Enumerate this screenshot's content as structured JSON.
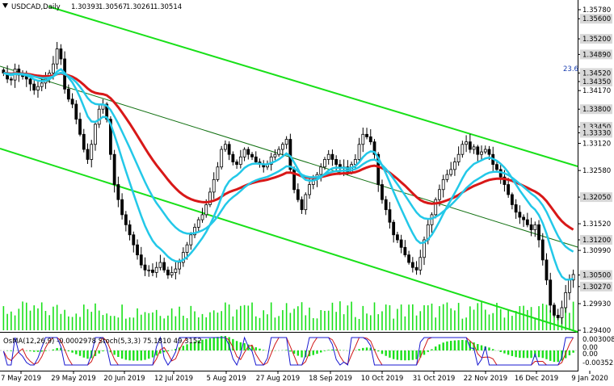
{
  "chart_data": {
    "type": "candlestick",
    "symbol": "USDCAD,Daily",
    "ohlc": {
      "open": "1.30393",
      "high": "1.30567",
      "low": "1.30261",
      "close": "1.30514"
    },
    "fib_label": "23.6",
    "price_ticks": [
      "1.35780",
      "1.35600",
      "1.35200",
      "1.34890",
      "1.34520",
      "1.34350",
      "1.34170",
      "1.33800",
      "1.33450",
      "1.33330",
      "1.33120",
      "1.32580",
      "1.32050",
      "1.31520",
      "1.31200",
      "1.30990",
      "1.30500",
      "1.30270",
      "1.29930",
      "1.29400"
    ],
    "price_tick_values": [
      1.3578,
      1.356,
      1.352,
      1.3489,
      1.3452,
      1.3435,
      1.3417,
      1.338,
      1.3345,
      1.3333,
      1.3312,
      1.3258,
      1.3205,
      1.3152,
      1.312,
      1.3099,
      1.305,
      1.3027,
      1.2993,
      1.294
    ],
    "highlighted_levels": [
      "1.35600",
      "1.35200",
      "1.34890",
      "1.34520",
      "1.34350",
      "1.33800",
      "1.33450",
      "1.33330",
      "1.32050",
      "1.31200",
      "1.30500",
      "1.30270"
    ],
    "date_ticks": [
      "7 May 2019",
      "29 May 2019",
      "20 Jun 2019",
      "12 Jul 2019",
      "5 Aug 2019",
      "27 Aug 2019",
      "18 Sep 2019",
      "10 Oct 2019",
      "31 Oct 2019",
      "22 Nov 2019",
      "16 Dec 2019",
      "9 Jan 2020"
    ],
    "indicator_label": "OsMA(12,26,9) -0.0002978 Stoch(5,3,3) 75.1810 49.3152",
    "indicator_ticks": [
      "0.0030085",
      "0.00",
      "0.00",
      "-0.0035255"
    ],
    "price_range": [
      1.294,
      1.3578
    ],
    "colors": {
      "candles": "#000000",
      "ema_fast": "#23c8e8",
      "ema_mid": "#23c8e8",
      "ema_slow": "#d81818",
      "channel": "#19e019",
      "channel_mid": "#106010",
      "volume": "#19e019",
      "osma": "#19e019",
      "stoch_main": "#1818d0",
      "stoch_signal": "#d01818"
    },
    "closes": [
      1.3452,
      1.344,
      1.3438,
      1.346,
      1.3448,
      1.3445,
      1.344,
      1.343,
      1.3418,
      1.3425,
      1.3432,
      1.344,
      1.3452,
      1.347,
      1.35,
      1.348,
      1.342,
      1.34,
      1.339,
      1.336,
      1.333,
      1.33,
      1.328,
      1.331,
      1.335,
      1.338,
      1.339,
      1.336,
      1.329,
      1.323,
      1.32,
      1.317,
      1.315,
      1.313,
      1.311,
      1.309,
      1.307,
      1.306,
      1.306,
      1.3055,
      1.3065,
      1.3075,
      1.306,
      1.305,
      1.3055,
      1.3062,
      1.3075,
      1.3095,
      1.311,
      1.313,
      1.3145,
      1.316,
      1.317,
      1.319,
      1.3215,
      1.324,
      1.3265,
      1.33,
      1.331,
      1.329,
      1.3275,
      1.327,
      1.3285,
      1.33,
      1.329,
      1.3285,
      1.3275,
      1.327,
      1.3265,
      1.327,
      1.3285,
      1.329,
      1.33,
      1.331,
      1.332,
      1.326,
      1.322,
      1.32,
      1.318,
      1.321,
      1.323,
      1.324,
      1.325,
      1.3265,
      1.328,
      1.329,
      1.328,
      1.327,
      1.3262,
      1.3265,
      1.3255,
      1.327,
      1.328,
      1.331,
      1.333,
      1.3325,
      1.3315,
      1.329,
      1.323,
      1.32,
      1.318,
      1.3155,
      1.313,
      1.312,
      1.3105,
      1.309,
      1.3075,
      1.3065,
      1.306,
      1.3085,
      1.312,
      1.315,
      1.317,
      1.32,
      1.322,
      1.324,
      1.325,
      1.326,
      1.3275,
      1.329,
      1.331,
      1.3315,
      1.33,
      1.3305,
      1.329,
      1.3295,
      1.33,
      1.329,
      1.327,
      1.326,
      1.3245,
      1.323,
      1.321,
      1.319,
      1.3175,
      1.3165,
      1.316,
      1.315,
      1.314,
      1.315,
      1.312,
      1.308,
      1.304,
      1.299,
      1.297,
      1.2965,
      1.2985,
      1.3015,
      1.304,
      1.3051
    ]
  }
}
